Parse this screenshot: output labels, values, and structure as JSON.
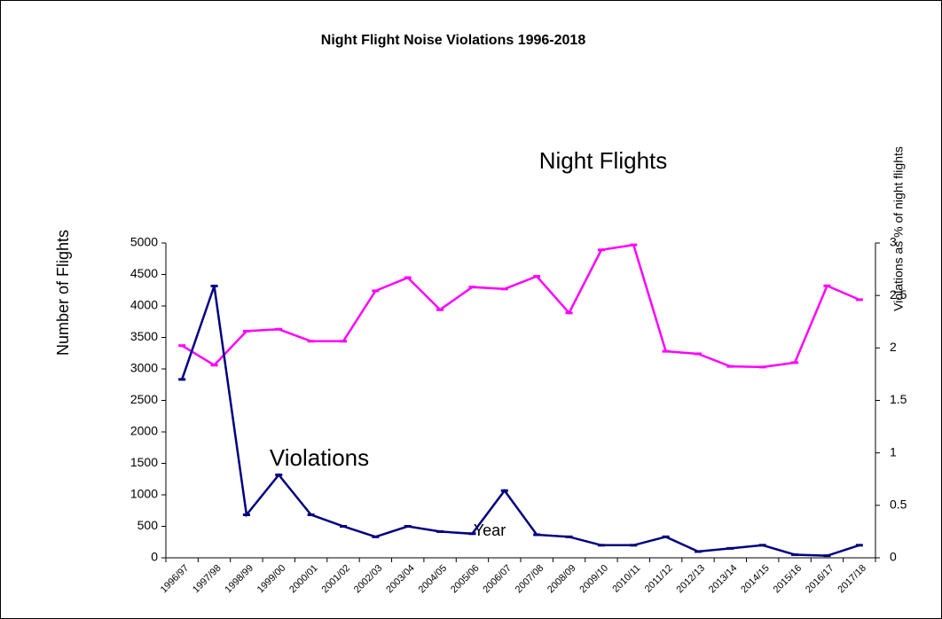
{
  "chart_data": {
    "type": "line",
    "title": "Night Flight Noise Violations 1996-2018",
    "ylabel": "Number of Flights",
    "y2label": "Violations as % of night flights",
    "xlabel": "Year",
    "annotations": [
      "Night Flights",
      "Violations"
    ],
    "categories": [
      "1996/97",
      "1997/98",
      "1998/99",
      "1999/00",
      "2000/01",
      "2001/02",
      "2002/03",
      "2003/04",
      "2004/05",
      "2005/06",
      "2006/07",
      "2007/08",
      "2008/09",
      "2009/10",
      "2010/11",
      "2011/12",
      "2012/13",
      "2013/14",
      "2014/15",
      "2015/16",
      "2016/17",
      "2017/18"
    ],
    "series": [
      {
        "name": "Night Flights",
        "color": "#ff00ff",
        "values": [
          3370,
          3060,
          3600,
          3630,
          3440,
          3440,
          4240,
          4450,
          3940,
          4300,
          4270,
          4470,
          3890,
          4890,
          4970,
          3280,
          3240,
          3040,
          3030,
          3100,
          4320,
          4100
        ]
      },
      {
        "name": "Violations",
        "color": "#000080",
        "axis": "y2",
        "values": [
          1.7,
          2.59,
          0.41,
          0.79,
          0.41,
          0.3,
          0.2,
          0.3,
          0.25,
          0.23,
          0.64,
          0.22,
          0.2,
          0.12,
          0.12,
          0.2,
          0.06,
          0.09,
          0.12,
          0.03,
          0.02,
          0.12
        ]
      }
    ],
    "ylim": [
      0,
      5000
    ],
    "yticks": [
      0,
      500,
      1000,
      1500,
      2000,
      2500,
      3000,
      3500,
      4000,
      4500,
      5000
    ],
    "y2lim": [
      0,
      3
    ],
    "y2ticks": [
      0,
      0.5,
      1,
      1.5,
      2,
      2.5,
      3
    ]
  }
}
